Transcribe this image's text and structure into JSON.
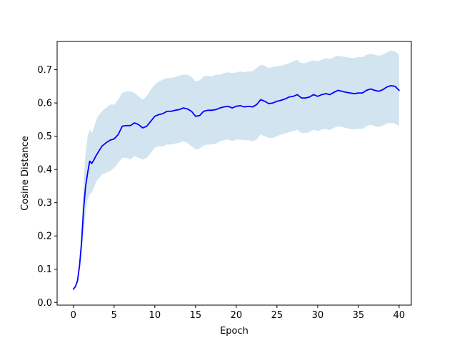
{
  "chart_data": {
    "type": "line",
    "title": "",
    "xlabel": "Epoch",
    "ylabel": "Cosine Distance",
    "xlim": [
      -2,
      41.5
    ],
    "ylim": [
      -0.008,
      0.785
    ],
    "x_ticks": [
      0,
      5,
      10,
      15,
      20,
      25,
      30,
      35,
      40
    ],
    "x_tick_labels": [
      "0",
      "5",
      "10",
      "15",
      "20",
      "25",
      "30",
      "35",
      "40"
    ],
    "y_ticks": [
      0.0,
      0.1,
      0.2,
      0.3,
      0.4,
      0.5,
      0.6,
      0.7
    ],
    "y_tick_labels": [
      "0.0",
      "0.1",
      "0.2",
      "0.3",
      "0.4",
      "0.5",
      "0.6",
      "0.7"
    ],
    "grid": false,
    "legend": "none",
    "series": [
      {
        "line_color": "#0000ff",
        "band_color": "#1f77b4",
        "band_opacity": 0.2,
        "x": [
          0,
          0.25,
          0.5,
          0.75,
          1.0,
          1.25,
          1.5,
          1.75,
          2.0,
          2.25,
          2.5,
          2.75,
          3.0,
          3.5,
          4.0,
          4.5,
          5.0,
          5.5,
          6.0,
          6.5,
          7.0,
          7.5,
          8.0,
          8.5,
          9.0,
          9.5,
          10.0,
          10.5,
          11.0,
          11.5,
          12.0,
          12.5,
          13.0,
          13.5,
          14.0,
          14.5,
          15.0,
          15.5,
          16.0,
          16.5,
          17.0,
          17.5,
          18.0,
          18.5,
          19.0,
          19.5,
          20.0,
          20.5,
          21.0,
          21.5,
          22.0,
          22.5,
          23.0,
          23.5,
          24.0,
          24.5,
          25.0,
          25.5,
          26.0,
          26.5,
          27.0,
          27.5,
          28.0,
          28.5,
          29.0,
          29.5,
          30.0,
          30.5,
          31.0,
          31.5,
          32.0,
          32.5,
          33.0,
          33.5,
          34.0,
          34.5,
          35.0,
          35.5,
          36.0,
          36.5,
          37.0,
          37.5,
          38.0,
          38.5,
          39.0,
          39.5,
          40.0
        ],
        "mean": [
          0.04,
          0.048,
          0.065,
          0.11,
          0.18,
          0.28,
          0.35,
          0.39,
          0.425,
          0.418,
          0.428,
          0.44,
          0.45,
          0.47,
          0.48,
          0.488,
          0.492,
          0.505,
          0.53,
          0.532,
          0.532,
          0.54,
          0.535,
          0.525,
          0.53,
          0.545,
          0.56,
          0.565,
          0.568,
          0.575,
          0.575,
          0.578,
          0.58,
          0.585,
          0.582,
          0.575,
          0.56,
          0.562,
          0.575,
          0.578,
          0.578,
          0.58,
          0.585,
          0.588,
          0.59,
          0.585,
          0.59,
          0.592,
          0.588,
          0.59,
          0.588,
          0.595,
          0.61,
          0.605,
          0.598,
          0.6,
          0.605,
          0.608,
          0.612,
          0.618,
          0.62,
          0.625,
          0.615,
          0.615,
          0.618,
          0.625,
          0.62,
          0.625,
          0.628,
          0.625,
          0.632,
          0.638,
          0.635,
          0.632,
          0.63,
          0.628,
          0.63,
          0.63,
          0.638,
          0.642,
          0.638,
          0.635,
          0.64,
          0.648,
          0.652,
          0.65,
          0.638
        ],
        "upper": [
          0.04,
          0.05,
          0.075,
          0.13,
          0.22,
          0.36,
          0.45,
          0.5,
          0.52,
          0.51,
          0.525,
          0.545,
          0.56,
          0.575,
          0.585,
          0.595,
          0.595,
          0.61,
          0.63,
          0.635,
          0.635,
          0.63,
          0.62,
          0.61,
          0.62,
          0.64,
          0.655,
          0.665,
          0.67,
          0.675,
          0.675,
          0.678,
          0.682,
          0.685,
          0.685,
          0.678,
          0.665,
          0.668,
          0.68,
          0.682,
          0.68,
          0.685,
          0.685,
          0.69,
          0.692,
          0.69,
          0.692,
          0.695,
          0.692,
          0.695,
          0.695,
          0.705,
          0.715,
          0.712,
          0.705,
          0.708,
          0.71,
          0.712,
          0.715,
          0.72,
          0.725,
          0.73,
          0.72,
          0.72,
          0.725,
          0.728,
          0.725,
          0.73,
          0.735,
          0.732,
          0.738,
          0.742,
          0.74,
          0.738,
          0.736,
          0.735,
          0.738,
          0.738,
          0.745,
          0.748,
          0.745,
          0.742,
          0.745,
          0.752,
          0.758,
          0.755,
          0.745
        ],
        "lower": [
          0.04,
          0.046,
          0.06,
          0.095,
          0.145,
          0.21,
          0.27,
          0.31,
          0.325,
          0.33,
          0.345,
          0.36,
          0.37,
          0.385,
          0.39,
          0.395,
          0.405,
          0.42,
          0.435,
          0.435,
          0.43,
          0.44,
          0.435,
          0.43,
          0.435,
          0.45,
          0.465,
          0.47,
          0.47,
          0.475,
          0.475,
          0.478,
          0.48,
          0.485,
          0.48,
          0.47,
          0.46,
          0.462,
          0.472,
          0.475,
          0.475,
          0.478,
          0.485,
          0.488,
          0.49,
          0.485,
          0.49,
          0.49,
          0.488,
          0.488,
          0.485,
          0.49,
          0.505,
          0.5,
          0.495,
          0.495,
          0.5,
          0.505,
          0.508,
          0.512,
          0.515,
          0.52,
          0.51,
          0.51,
          0.512,
          0.52,
          0.515,
          0.52,
          0.522,
          0.518,
          0.525,
          0.53,
          0.528,
          0.525,
          0.522,
          0.52,
          0.522,
          0.522,
          0.53,
          0.535,
          0.53,
          0.528,
          0.532,
          0.538,
          0.54,
          0.538,
          0.53
        ]
      }
    ]
  }
}
